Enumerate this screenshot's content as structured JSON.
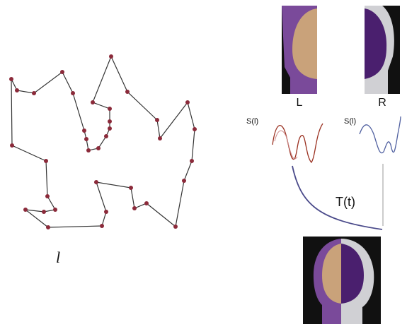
{
  "labels": {
    "path_var": "l",
    "left": "L",
    "right": "R",
    "signal_left": "S(l)",
    "signal_right": "S(l)",
    "transform": "T(t)"
  }
}
